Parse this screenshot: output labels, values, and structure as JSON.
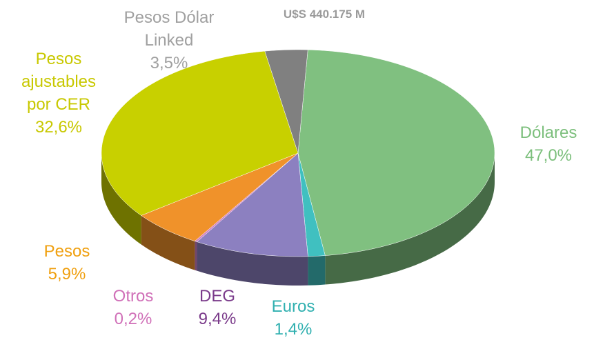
{
  "chart_data": {
    "type": "pie",
    "title": "U$S 440.175  M",
    "categories": [
      "Dólares",
      "Euros",
      "DEG",
      "Otros",
      "Pesos",
      "Pesos ajustables por CER",
      "Pesos Dólar Linked"
    ],
    "values": [
      47.0,
      1.4,
      9.4,
      0.2,
      5.9,
      32.6,
      3.5
    ],
    "value_labels": [
      "47,0%",
      "1,4%",
      "9,4%",
      "0,2%",
      "5,9%",
      "32,6%",
      "3,5%"
    ],
    "colors": [
      "#80c080",
      "#40c0c0",
      "#8c80c0",
      "#d080c0",
      "#f0922a",
      "#c8d000",
      "#808080"
    ],
    "label_colors": [
      "#7cbf7c",
      "#30b0b0",
      "#7a3a8a",
      "#d070b8",
      "#f0a010",
      "#c8c800",
      "#a0a0a0"
    ]
  }
}
